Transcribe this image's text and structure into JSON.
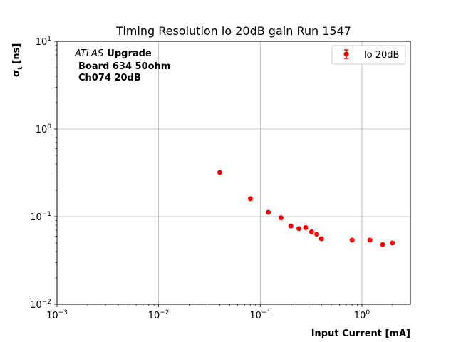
{
  "chart_data": {
    "type": "scatter",
    "title": "Timing Resolution lo 20dB gain Run 1547",
    "xlabel": "Input Current [mA]",
    "ylabel_main": "σ",
    "ylabel_sub": "t",
    "ylabel_unit": "[ns]",
    "xscale": "log",
    "yscale": "log",
    "xlim": [
      0.001,
      3
    ],
    "ylim": [
      0.01,
      10
    ],
    "x_ticks": [
      {
        "value": 0.001,
        "base": "10",
        "exp": "−3"
      },
      {
        "value": 0.01,
        "base": "10",
        "exp": "−2"
      },
      {
        "value": 0.1,
        "base": "10",
        "exp": "−1"
      },
      {
        "value": 1,
        "base": "10",
        "exp": "0"
      }
    ],
    "y_ticks": [
      {
        "value": 0.01,
        "base": "10",
        "exp": "−2"
      },
      {
        "value": 0.1,
        "base": "10",
        "exp": "−1"
      },
      {
        "value": 1,
        "base": "10",
        "exp": "0"
      },
      {
        "value": 10,
        "base": "10",
        "exp": "1"
      }
    ],
    "grid": true,
    "legend_position": "top-right",
    "annotation": {
      "atlas": "ATLAS",
      "upgrade": "Upgrade",
      "line2": "Board 634 50ohm",
      "line3": "Ch074 20dB"
    },
    "series": [
      {
        "name": "lo 20dB",
        "color": "#ff0000",
        "x": [
          0.04,
          0.08,
          0.12,
          0.16,
          0.2,
          0.24,
          0.28,
          0.32,
          0.36,
          0.4,
          0.8,
          1.2,
          1.6,
          2.0
        ],
        "y": [
          0.32,
          0.16,
          0.112,
          0.097,
          0.078,
          0.073,
          0.075,
          0.067,
          0.063,
          0.056,
          0.054,
          0.054,
          0.048,
          0.05
        ]
      }
    ]
  }
}
